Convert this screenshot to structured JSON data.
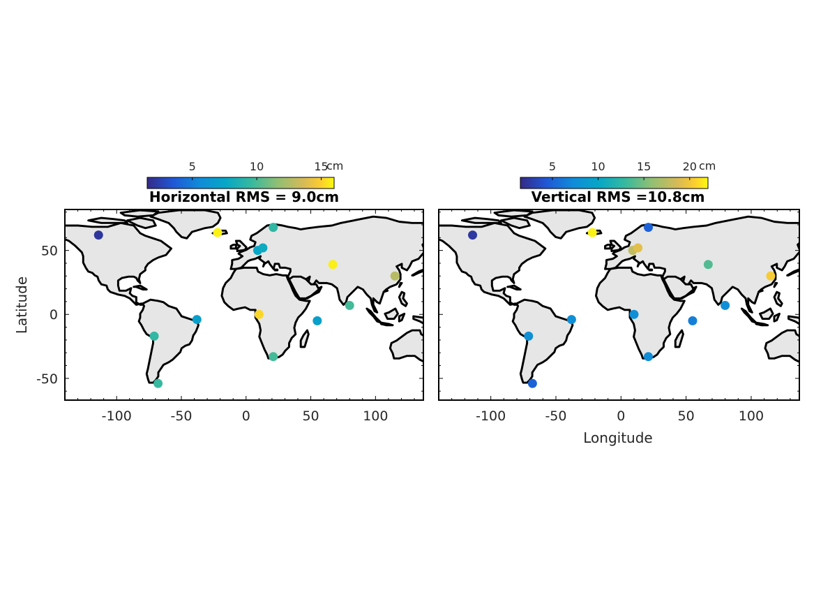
{
  "figure": {
    "ylabel": "Latitude",
    "xlabel": "Longitude"
  },
  "chart_data": [
    {
      "type": "scatter",
      "title": "Horizontal RMS = 9.0cm",
      "xlim": [
        -140,
        137
      ],
      "ylim": [
        -67,
        82
      ],
      "xticks": [
        -100,
        -50,
        0,
        50,
        100
      ],
      "yticks": [
        -50,
        0,
        50
      ],
      "colorbar": {
        "unit": "cm",
        "range": [
          1.5,
          16
        ],
        "ticks": [
          5,
          10,
          15
        ],
        "colormap": "parula",
        "placement": "top"
      },
      "points": [
        {
          "x": -114,
          "y": 62,
          "v": 2
        },
        {
          "x": -22,
          "y": 64,
          "v": 15.6
        },
        {
          "x": 21,
          "y": 68,
          "v": 8.5
        },
        {
          "x": 9,
          "y": 50,
          "v": 6.8
        },
        {
          "x": 13,
          "y": 52,
          "v": 7.2
        },
        {
          "x": 67,
          "y": 39,
          "v": 15.5
        },
        {
          "x": 115,
          "y": 30,
          "v": 11.5
        },
        {
          "x": 80,
          "y": 7,
          "v": 9
        },
        {
          "x": 55,
          "y": -5,
          "v": 6.5
        },
        {
          "x": 10,
          "y": 0,
          "v": 14.5
        },
        {
          "x": -38,
          "y": -4,
          "v": 6.5
        },
        {
          "x": -71,
          "y": -17,
          "v": 8.5
        },
        {
          "x": 21,
          "y": -33,
          "v": 9
        },
        {
          "x": -68,
          "y": -54,
          "v": 8.7
        }
      ]
    },
    {
      "type": "scatter",
      "title": "Vertical RMS =10.8cm",
      "xlim": [
        -140,
        137
      ],
      "ylim": [
        -67,
        82
      ],
      "xticks": [
        -100,
        -50,
        0,
        50,
        100
      ],
      "yticks": [],
      "colorbar": {
        "unit": "cm",
        "range": [
          1.5,
          22
        ],
        "ticks": [
          5,
          10,
          15,
          20
        ],
        "colormap": "parula",
        "placement": "top"
      },
      "points": [
        {
          "x": -114,
          "y": 62,
          "v": 2.3
        },
        {
          "x": -22,
          "y": 64,
          "v": 21.5
        },
        {
          "x": 21,
          "y": 68,
          "v": 4.5
        },
        {
          "x": 9,
          "y": 50,
          "v": 16
        },
        {
          "x": 13,
          "y": 52,
          "v": 17.5
        },
        {
          "x": 67,
          "y": 39,
          "v": 12.5
        },
        {
          "x": 115,
          "y": 30,
          "v": 19
        },
        {
          "x": 80,
          "y": 7,
          "v": 7
        },
        {
          "x": 55,
          "y": -5,
          "v": 6
        },
        {
          "x": 10,
          "y": 0,
          "v": 7
        },
        {
          "x": -38,
          "y": -4,
          "v": 7
        },
        {
          "x": -71,
          "y": -17,
          "v": 7
        },
        {
          "x": 21,
          "y": -33,
          "v": 6.8
        },
        {
          "x": -68,
          "y": -54,
          "v": 4.5
        }
      ]
    }
  ]
}
